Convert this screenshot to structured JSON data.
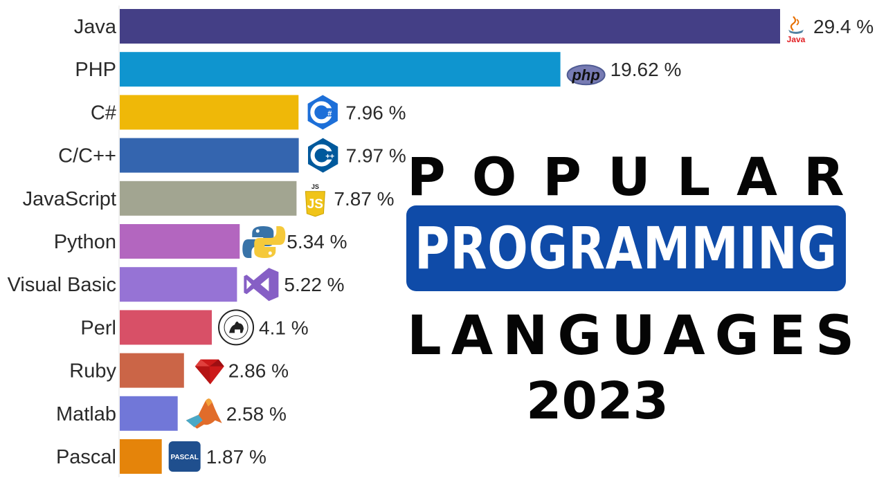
{
  "title": {
    "line1": "POPULAR",
    "line2": "PROGRAMMING",
    "line3": "LANGUAGES",
    "year": "2023"
  },
  "chart_data": {
    "type": "bar",
    "orientation": "horizontal",
    "categories": [
      "Java",
      "PHP",
      "C#",
      "C/C++",
      "JavaScript",
      "Python",
      "Visual Basic",
      "Perl",
      "Ruby",
      "Matlab",
      "Pascal"
    ],
    "values": [
      29.4,
      19.62,
      7.96,
      7.97,
      7.87,
      5.34,
      5.22,
      4.1,
      2.86,
      2.58,
      1.87
    ],
    "value_labels": [
      "29.4 %",
      "19.62 %",
      "7.96 %",
      "7.97 %",
      "7.87 %",
      "5.34 %",
      "5.22 %",
      "4.1 %",
      "2.86 %",
      "2.58 %",
      "1.87 %"
    ],
    "unit": "%",
    "colors": [
      "#443f86",
      "#0f95cf",
      "#efb808",
      "#3465af",
      "#a2a591",
      "#b366bf",
      "#9673d5",
      "#d85067",
      "#cb6547",
      "#7177d8",
      "#e5840a"
    ],
    "icons": [
      "java-icon",
      "php-icon",
      "csharp-icon",
      "cpp-icon",
      "javascript-icon",
      "python-icon",
      "visual-studio-icon",
      "perl-icon",
      "ruby-icon",
      "matlab-icon",
      "pascal-icon"
    ],
    "icon_text": {
      "java": "Java",
      "php": "php",
      "csharp": "C#",
      "cpp": "C++",
      "js_badge": "JS",
      "js_letters": "JS",
      "pascal": "PASCAL"
    },
    "xlim": [
      0,
      29.4
    ],
    "grid": false,
    "legend": "none"
  }
}
